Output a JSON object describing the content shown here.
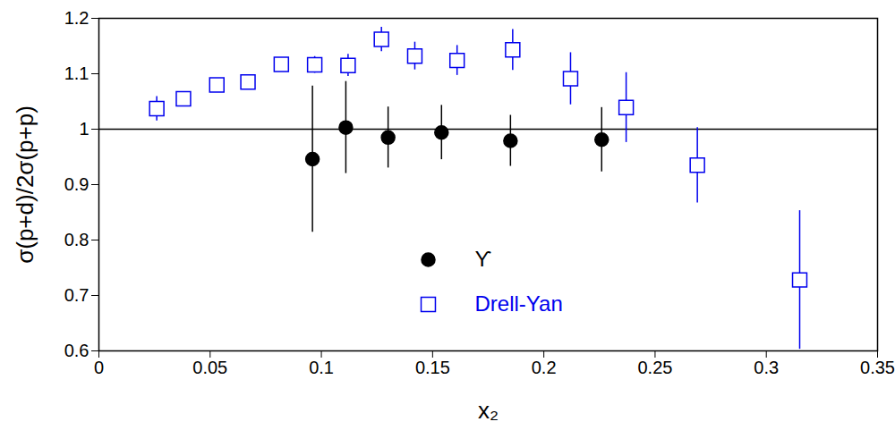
{
  "chart_data": {
    "type": "scatter",
    "x_label": "x₂",
    "y_label": "σ(p+d)/2σ(p+p)",
    "xlim": [
      0,
      0.35
    ],
    "xticks": [
      0,
      0.05,
      0.1,
      0.15,
      0.2,
      0.25,
      0.3,
      0.35
    ],
    "ylim": [
      0.6,
      1.2
    ],
    "yticks": [
      0.6,
      0.7,
      0.8,
      0.9,
      1,
      1.1,
      1.2
    ],
    "reference_y": 1,
    "legend": "bottom",
    "series": [
      {
        "name": "ϒ",
        "color": "#000000",
        "marker": "circle",
        "x": [
          0.096,
          0.111,
          0.13,
          0.154,
          0.185,
          0.226
        ],
        "values": [
          0.946,
          1.003,
          0.985,
          0.994,
          0.979,
          0.981
        ],
        "errors": [
          0.132,
          0.083,
          0.055,
          0.049,
          0.046,
          0.058
        ]
      },
      {
        "name": "Drell-Yan",
        "color": "#0000ee",
        "marker": "square",
        "x": [
          0.026,
          0.038,
          0.053,
          0.067,
          0.082,
          0.097,
          0.112,
          0.127,
          0.142,
          0.161,
          0.186,
          0.212,
          0.237,
          0.269,
          0.315
        ],
        "values": [
          1.037,
          1.055,
          1.08,
          1.085,
          1.117,
          1.116,
          1.115,
          1.162,
          1.132,
          1.124,
          1.143,
          1.091,
          1.039,
          0.935,
          0.728
        ],
        "errors": [
          0.022,
          0.01,
          0.01,
          0.01,
          0.01,
          0.015,
          0.02,
          0.022,
          0.025,
          0.027,
          0.037,
          0.047,
          0.063,
          0.068,
          0.125
        ]
      }
    ]
  }
}
